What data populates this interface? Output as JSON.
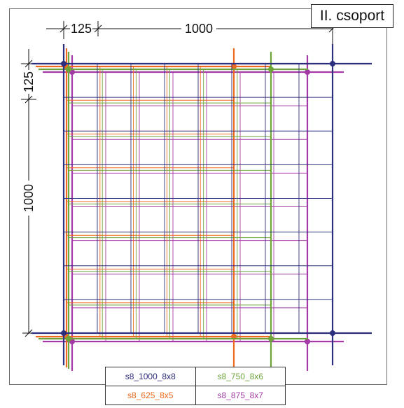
{
  "title": "II. csoport",
  "dimensions": {
    "top_small": "125",
    "top_large": "1000",
    "left_small": "125",
    "left_large": "1000"
  },
  "meshes": [
    {
      "id": "s8_1000_8x8",
      "label": "s8_1000_8x8",
      "color": "#2e2e7e"
    },
    {
      "id": "s8_750_8x6",
      "label": "s8_750_8x6",
      "color": "#6ea53a"
    },
    {
      "id": "s8_625_8x5",
      "label": "s8_625_8x5",
      "color": "#ef6a1f"
    },
    {
      "id": "s8_875_8x7",
      "label": "s8_875_8x7",
      "color": "#a43aa6"
    }
  ],
  "legend": {
    "cells": [
      {
        "text": "s8_1000_8x8",
        "color": "#2e2e7e"
      },
      {
        "text": "s8_750_8x6",
        "color": "#6ea53a"
      },
      {
        "text": "s8_625_8x5",
        "color": "#ef6a1f"
      },
      {
        "text": "s8_875_8x7",
        "color": "#a43aa6"
      }
    ]
  }
}
